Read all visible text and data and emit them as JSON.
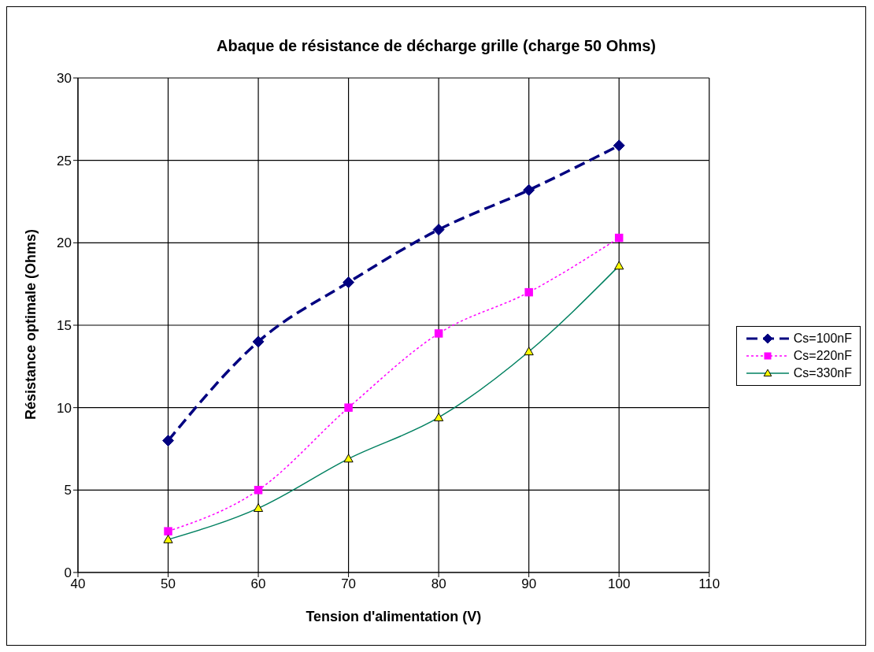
{
  "chart_data": {
    "type": "line",
    "title": "Abaque de résistance de décharge grille (charge 50 Ohms)",
    "xlabel": "Tension d'alimentation (V)",
    "ylabel": "Résistance optimale (Ohms)",
    "x": [
      50,
      60,
      70,
      80,
      90,
      100
    ],
    "series": [
      {
        "name": "Cs=100nF",
        "color": "#000080",
        "marker": "diamond",
        "line_style": "dashed",
        "values": [
          8,
          14,
          17.6,
          20.8,
          23.2,
          25.9
        ]
      },
      {
        "name": "Cs=220nF",
        "color": "#ff00ff",
        "marker": "square",
        "line_style": "dotted",
        "values": [
          2.5,
          5,
          10,
          14.5,
          17,
          20.3
        ]
      },
      {
        "name": "Cs=330nF",
        "color": "#008060",
        "marker": "triangle",
        "line_style": "solid",
        "values": [
          2,
          3.9,
          6.9,
          9.4,
          13.4,
          18.6
        ]
      }
    ],
    "xlim": [
      40,
      110
    ],
    "xticks": [
      40,
      50,
      60,
      70,
      80,
      90,
      100,
      110
    ],
    "ylim": [
      0,
      30
    ],
    "yticks": [
      0,
      5,
      10,
      15,
      20,
      25,
      30
    ],
    "grid": true,
    "legend": "right"
  }
}
